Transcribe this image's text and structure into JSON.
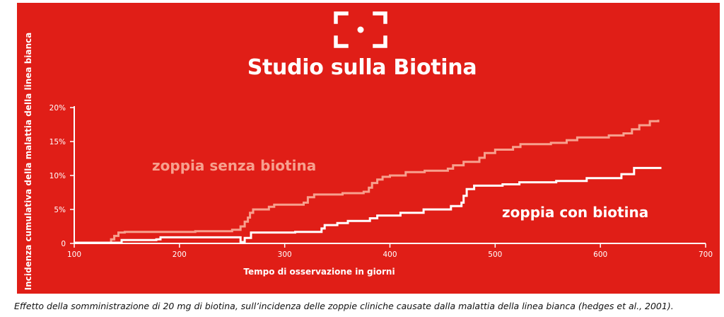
{
  "header": {
    "title": "Studio sulla Biotina",
    "logo_icon": "focus-frame-icon"
  },
  "caption": "Effetto della somministrazione di 20 mg di biotina, sull’incidenza delle zoppie cliniche causate dalla malattia della linea bianca (hedges et al., 2001).",
  "colors": {
    "background": "#e01e17",
    "series_without": "#f7a08e",
    "series_with": "#ffffff",
    "axis": "#ffffff"
  },
  "chart_data": {
    "type": "line",
    "xlabel": "Tempo di osservazione in giorni",
    "ylabel": "Incidenza cumulativa della malattia della linea bianca",
    "xlim": [
      100,
      700
    ],
    "ylim": [
      0,
      20
    ],
    "x_ticks": [
      100,
      200,
      300,
      400,
      500,
      600,
      700
    ],
    "y_ticks": [
      0,
      5,
      10,
      15,
      20
    ],
    "y_tick_labels": [
      "0",
      "5%",
      "10%",
      "15%",
      "20%"
    ],
    "grid": false,
    "legend": "inline labels",
    "series": [
      {
        "name": "zoppia senza biotina",
        "step": true,
        "points": [
          [
            100,
            0.1
          ],
          [
            134,
            0.1
          ],
          [
            135,
            0.6
          ],
          [
            138,
            1.1
          ],
          [
            142,
            1.6
          ],
          [
            148,
            1.7
          ],
          [
            215,
            1.8
          ],
          [
            250,
            2.0
          ],
          [
            258,
            2.5
          ],
          [
            262,
            3.2
          ],
          [
            265,
            3.8
          ],
          [
            267,
            4.5
          ],
          [
            270,
            5.0
          ],
          [
            285,
            5.4
          ],
          [
            290,
            5.7
          ],
          [
            318,
            6.0
          ],
          [
            322,
            6.8
          ],
          [
            328,
            7.2
          ],
          [
            355,
            7.4
          ],
          [
            375,
            7.6
          ],
          [
            380,
            8.2
          ],
          [
            383,
            8.9
          ],
          [
            388,
            9.4
          ],
          [
            393,
            9.8
          ],
          [
            400,
            10.0
          ],
          [
            405,
            10.0
          ],
          [
            415,
            10.5
          ],
          [
            433,
            10.7
          ],
          [
            455,
            11.0
          ],
          [
            460,
            11.5
          ],
          [
            470,
            12.0
          ],
          [
            485,
            12.6
          ],
          [
            490,
            13.3
          ],
          [
            500,
            13.8
          ],
          [
            517,
            14.2
          ],
          [
            524,
            14.6
          ],
          [
            553,
            14.8
          ],
          [
            568,
            15.2
          ],
          [
            578,
            15.6
          ],
          [
            608,
            15.9
          ],
          [
            622,
            16.2
          ],
          [
            630,
            16.8
          ],
          [
            637,
            17.4
          ],
          [
            647,
            18.0
          ],
          [
            655,
            18.2
          ]
        ]
      },
      {
        "name": "zoppia con biotina",
        "step": true,
        "points": [
          [
            100,
            0.1
          ],
          [
            140,
            0.1
          ],
          [
            145,
            0.5
          ],
          [
            178,
            0.6
          ],
          [
            182,
            0.9
          ],
          [
            256,
            0.9
          ],
          [
            258,
            0.2
          ],
          [
            262,
            0.8
          ],
          [
            268,
            1.6
          ],
          [
            310,
            1.7
          ],
          [
            335,
            2.2
          ],
          [
            338,
            2.7
          ],
          [
            350,
            3.0
          ],
          [
            360,
            3.3
          ],
          [
            381,
            3.7
          ],
          [
            388,
            4.1
          ],
          [
            410,
            4.5
          ],
          [
            432,
            5.0
          ],
          [
            458,
            5.5
          ],
          [
            468,
            6.0
          ],
          [
            470,
            7.0
          ],
          [
            473,
            8.0
          ],
          [
            480,
            8.5
          ],
          [
            507,
            8.7
          ],
          [
            523,
            9.0
          ],
          [
            558,
            9.2
          ],
          [
            587,
            9.6
          ],
          [
            620,
            10.2
          ],
          [
            632,
            11.1
          ],
          [
            658,
            11.1
          ]
        ]
      }
    ]
  }
}
